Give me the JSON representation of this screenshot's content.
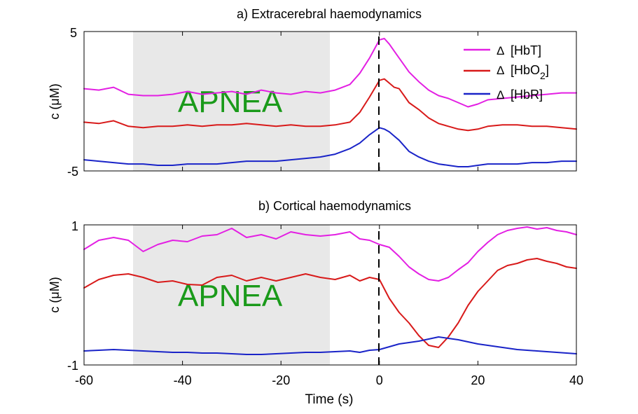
{
  "colors": {
    "HbT": "#e31fe3",
    "HbO2": "#d81a1a",
    "HbR": "#1a24c8",
    "apnea_shade": "#e8e8e8",
    "apnea_text": "#1a9a1a"
  },
  "legend": {
    "delta": "Δ",
    "hbt": "[HbT]",
    "hbo2_main": "[HbO",
    "hbo2_sub": "2",
    "hbo2_close": "]",
    "hbr": "[HbR]"
  },
  "chart_data": [
    {
      "type": "line",
      "title": "a) Extracerebral haemodynamics",
      "ylabel": "c (μM)",
      "xlabel": "",
      "xlim": [
        -60,
        40
      ],
      "ylim": [
        -5,
        5
      ],
      "yticks": [
        "-5",
        "5"
      ],
      "xticks": [
        -60,
        -40,
        -20,
        0,
        20,
        40
      ],
      "xticklabels": [],
      "shaded_region": {
        "x": [
          -50,
          -10
        ],
        "label": "APNEA"
      },
      "event_line": 0,
      "grid": false,
      "legend_position": "top-right",
      "x": [
        -60,
        -57,
        -54,
        -51,
        -48,
        -45,
        -42,
        -39,
        -36,
        -33,
        -30,
        -27,
        -24,
        -21,
        -18,
        -15,
        -12,
        -9,
        -6,
        -4,
        -2,
        0,
        1,
        2,
        3,
        4,
        5,
        6,
        8,
        10,
        12,
        14,
        16,
        18,
        20,
        22,
        25,
        28,
        31,
        34,
        37,
        40
      ],
      "series": [
        {
          "name": "Δ [HbT]",
          "key": "HbT",
          "values": [
            0.9,
            0.8,
            1.0,
            0.5,
            0.4,
            0.4,
            0.5,
            0.7,
            0.5,
            0.6,
            0.7,
            0.5,
            0.8,
            0.6,
            0.5,
            0.7,
            0.6,
            0.8,
            1.2,
            2.0,
            3.1,
            4.4,
            4.5,
            4.1,
            3.6,
            3.1,
            2.6,
            2.1,
            1.4,
            0.8,
            0.4,
            0.2,
            -0.1,
            -0.4,
            -0.2,
            0.1,
            0.2,
            0.3,
            0.4,
            0.5,
            0.6,
            0.6
          ]
        },
        {
          "name": "Δ [HbO2]",
          "key": "HbO2",
          "values": [
            -1.5,
            -1.6,
            -1.4,
            -1.8,
            -1.9,
            -1.8,
            -1.8,
            -1.7,
            -1.8,
            -1.7,
            -1.7,
            -1.6,
            -1.7,
            -1.8,
            -1.7,
            -1.8,
            -1.8,
            -1.7,
            -1.5,
            -0.8,
            0.3,
            1.5,
            1.6,
            1.3,
            1.0,
            0.9,
            0.4,
            -0.1,
            -0.6,
            -1.2,
            -1.6,
            -1.8,
            -2.0,
            -2.1,
            -2.0,
            -1.8,
            -1.7,
            -1.7,
            -1.8,
            -1.8,
            -1.9,
            -2.0
          ]
        },
        {
          "name": "Δ [HbR]",
          "key": "HbR",
          "values": [
            -4.2,
            -4.3,
            -4.4,
            -4.5,
            -4.5,
            -4.6,
            -4.6,
            -4.5,
            -4.5,
            -4.5,
            -4.4,
            -4.3,
            -4.3,
            -4.3,
            -4.2,
            -4.1,
            -4.0,
            -3.8,
            -3.4,
            -3.0,
            -2.4,
            -1.9,
            -2.0,
            -2.2,
            -2.5,
            -2.8,
            -3.2,
            -3.6,
            -4.0,
            -4.3,
            -4.5,
            -4.6,
            -4.7,
            -4.7,
            -4.6,
            -4.5,
            -4.5,
            -4.5,
            -4.4,
            -4.4,
            -4.3,
            -4.3
          ]
        }
      ]
    },
    {
      "type": "line",
      "title": "b) Cortical haemodynamics",
      "ylabel": "c (μM)",
      "xlabel": "Time (s)",
      "xlim": [
        -60,
        40
      ],
      "ylim": [
        -1,
        1
      ],
      "yticks": [
        "-1",
        "1"
      ],
      "xticks": [
        -60,
        -40,
        -20,
        0,
        20,
        40
      ],
      "xticklabels": [
        "-60",
        "-40",
        "-20",
        "0",
        "20",
        "40"
      ],
      "shaded_region": {
        "x": [
          -50,
          -10
        ],
        "label": "APNEA"
      },
      "event_line": 0,
      "grid": false,
      "legend_position": "none",
      "x": [
        -60,
        -57,
        -54,
        -51,
        -48,
        -45,
        -42,
        -39,
        -36,
        -33,
        -30,
        -27,
        -24,
        -21,
        -18,
        -15,
        -12,
        -9,
        -6,
        -4,
        -2,
        0,
        2,
        4,
        6,
        8,
        10,
        12,
        14,
        16,
        18,
        20,
        22,
        24,
        26,
        28,
        30,
        32,
        34,
        36,
        38,
        40
      ],
      "series": [
        {
          "name": "Δ [HbT]",
          "key": "HbT",
          "values": [
            0.65,
            0.78,
            0.82,
            0.78,
            0.62,
            0.72,
            0.78,
            0.76,
            0.84,
            0.86,
            0.95,
            0.82,
            0.86,
            0.8,
            0.9,
            0.86,
            0.84,
            0.86,
            0.9,
            0.8,
            0.78,
            0.72,
            0.68,
            0.55,
            0.4,
            0.3,
            0.22,
            0.2,
            0.25,
            0.36,
            0.46,
            0.62,
            0.75,
            0.86,
            0.92,
            0.95,
            0.97,
            0.94,
            0.96,
            0.92,
            0.9,
            0.86
          ]
        },
        {
          "name": "Δ [HbO2]",
          "key": "HbO2",
          "values": [
            0.1,
            0.22,
            0.28,
            0.3,
            0.25,
            0.18,
            0.2,
            0.15,
            0.14,
            0.25,
            0.28,
            0.2,
            0.25,
            0.2,
            0.25,
            0.3,
            0.25,
            0.22,
            0.28,
            0.2,
            0.25,
            0.22,
            -0.05,
            -0.25,
            -0.4,
            -0.58,
            -0.72,
            -0.75,
            -0.6,
            -0.4,
            -0.15,
            0.05,
            0.2,
            0.35,
            0.42,
            0.45,
            0.5,
            0.52,
            0.48,
            0.45,
            0.4,
            0.38
          ]
        },
        {
          "name": "Δ [HbR]",
          "key": "HbR",
          "values": [
            -0.8,
            -0.79,
            -0.78,
            -0.79,
            -0.8,
            -0.81,
            -0.82,
            -0.82,
            -0.83,
            -0.83,
            -0.84,
            -0.85,
            -0.85,
            -0.84,
            -0.83,
            -0.82,
            -0.82,
            -0.81,
            -0.8,
            -0.82,
            -0.79,
            -0.78,
            -0.74,
            -0.7,
            -0.68,
            -0.66,
            -0.63,
            -0.6,
            -0.62,
            -0.64,
            -0.67,
            -0.7,
            -0.72,
            -0.74,
            -0.76,
            -0.78,
            -0.79,
            -0.8,
            -0.81,
            -0.82,
            -0.83,
            -0.84
          ]
        }
      ]
    }
  ]
}
